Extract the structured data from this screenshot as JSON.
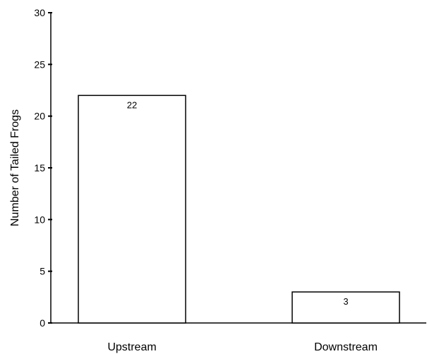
{
  "chart_data": {
    "type": "bar",
    "categories": [
      "Upstream",
      "Downstream"
    ],
    "values": [
      22,
      3
    ],
    "data_labels": [
      "22",
      "3"
    ],
    "title": "",
    "xlabel": "",
    "ylabel": "Number of Tailed Frogs",
    "ylim": [
      0,
      30
    ],
    "yticks": [
      0,
      5,
      10,
      15,
      20,
      25,
      30
    ],
    "grid": false,
    "bar_fill": "#ffffff",
    "bar_stroke": "#000000"
  }
}
